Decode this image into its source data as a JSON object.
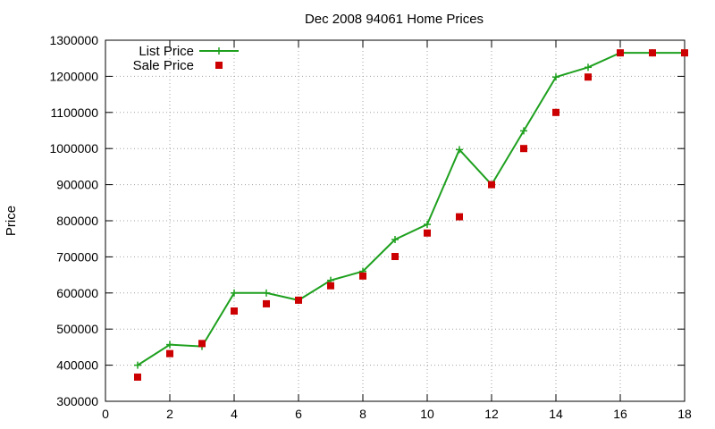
{
  "chart_data": {
    "type": "line",
    "title": "Dec 2008 94061 Home Prices",
    "xlabel": "",
    "ylabel": "Price",
    "xlim": [
      0,
      18
    ],
    "ylim": [
      300000,
      1300000
    ],
    "x_ticks": [
      0,
      2,
      4,
      6,
      8,
      10,
      12,
      14,
      16,
      18
    ],
    "y_ticks": [
      300000,
      400000,
      500000,
      600000,
      700000,
      800000,
      900000,
      1000000,
      1100000,
      1200000,
      1300000
    ],
    "grid": true,
    "legend_position": "top-left",
    "series": [
      {
        "name": "List Price",
        "style": "line+cross",
        "color": "#1ea01e",
        "x": [
          1,
          2,
          3,
          4,
          5,
          6,
          7,
          8,
          9,
          10,
          11,
          12,
          13,
          14,
          15,
          16,
          17,
          18
        ],
        "values": [
          400000,
          457000,
          452000,
          600000,
          600000,
          580000,
          635000,
          660000,
          748000,
          790000,
          997000,
          900000,
          1049000,
          1198000,
          1225000,
          1265000,
          1265000,
          1265000
        ]
      },
      {
        "name": "Sale Price",
        "style": "square",
        "color": "#cc0000",
        "x": [
          1,
          2,
          3,
          4,
          5,
          6,
          7,
          8,
          9,
          10,
          11,
          12,
          13,
          14,
          15,
          16,
          17,
          18
        ],
        "values": [
          367000,
          432000,
          460000,
          550000,
          570000,
          580000,
          620000,
          647000,
          701000,
          766000,
          811000,
          900000,
          1000000,
          1100000,
          1198000,
          1265000,
          1265000,
          1265000
        ]
      }
    ]
  }
}
